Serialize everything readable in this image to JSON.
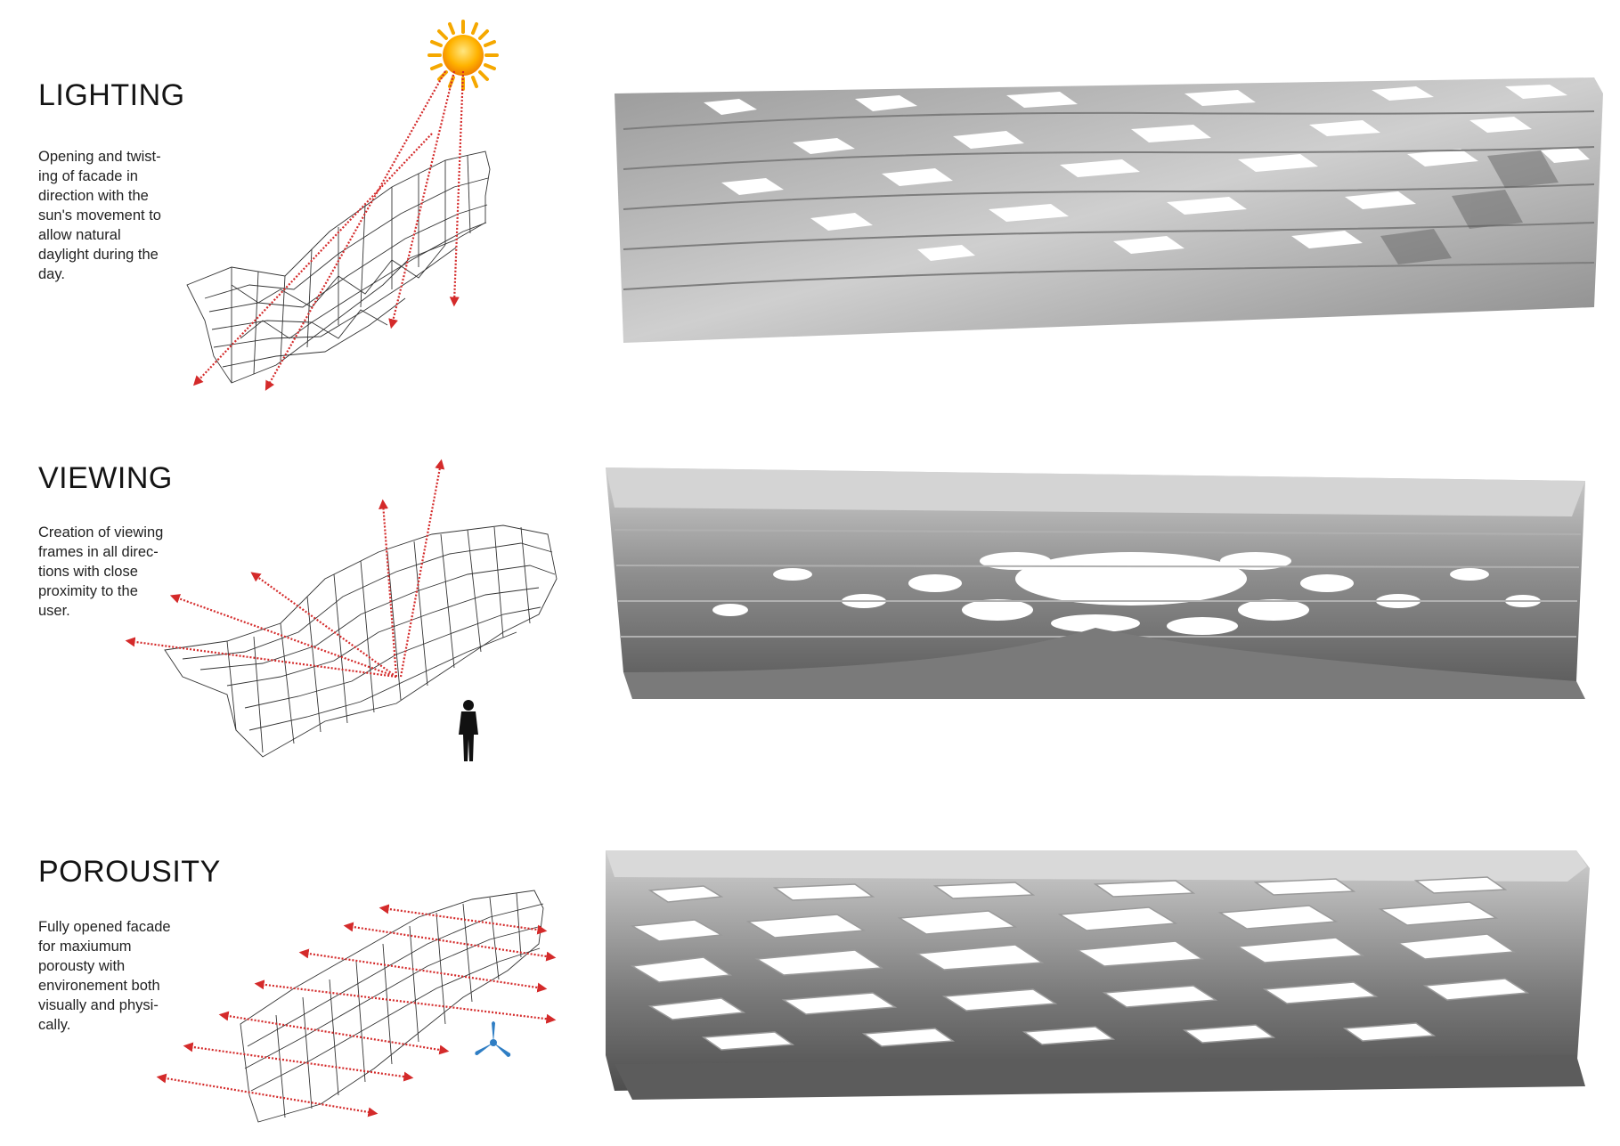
{
  "sections": [
    {
      "id": "lighting",
      "title": "LIGHTING",
      "description": "Opening and twist-\ning of facade in\ndirection with the\nsun's movement to\nallow natural\ndaylight during the\nday.",
      "icon": "sun-icon"
    },
    {
      "id": "viewing",
      "title": "VIEWING",
      "description": "Creation of viewing\nframes in all direc-\ntions with close\nproximity to the\nuser.",
      "icon": "person-silhouette-icon"
    },
    {
      "id": "porousity",
      "title": "POROUSITY",
      "description": "Fully opened facade\nfor maxiumum\nporousty with\nenvironement both\nvisually and physi-\ncally.",
      "icon": "wind-turbine-icon"
    }
  ],
  "colors": {
    "arrow": "#d42a2a",
    "sun": "#f5a800",
    "turbine": "#2f7ec4",
    "concrete_light": "#d8d8d8",
    "concrete_dark": "#6a6a6a",
    "wire": "#333333"
  }
}
